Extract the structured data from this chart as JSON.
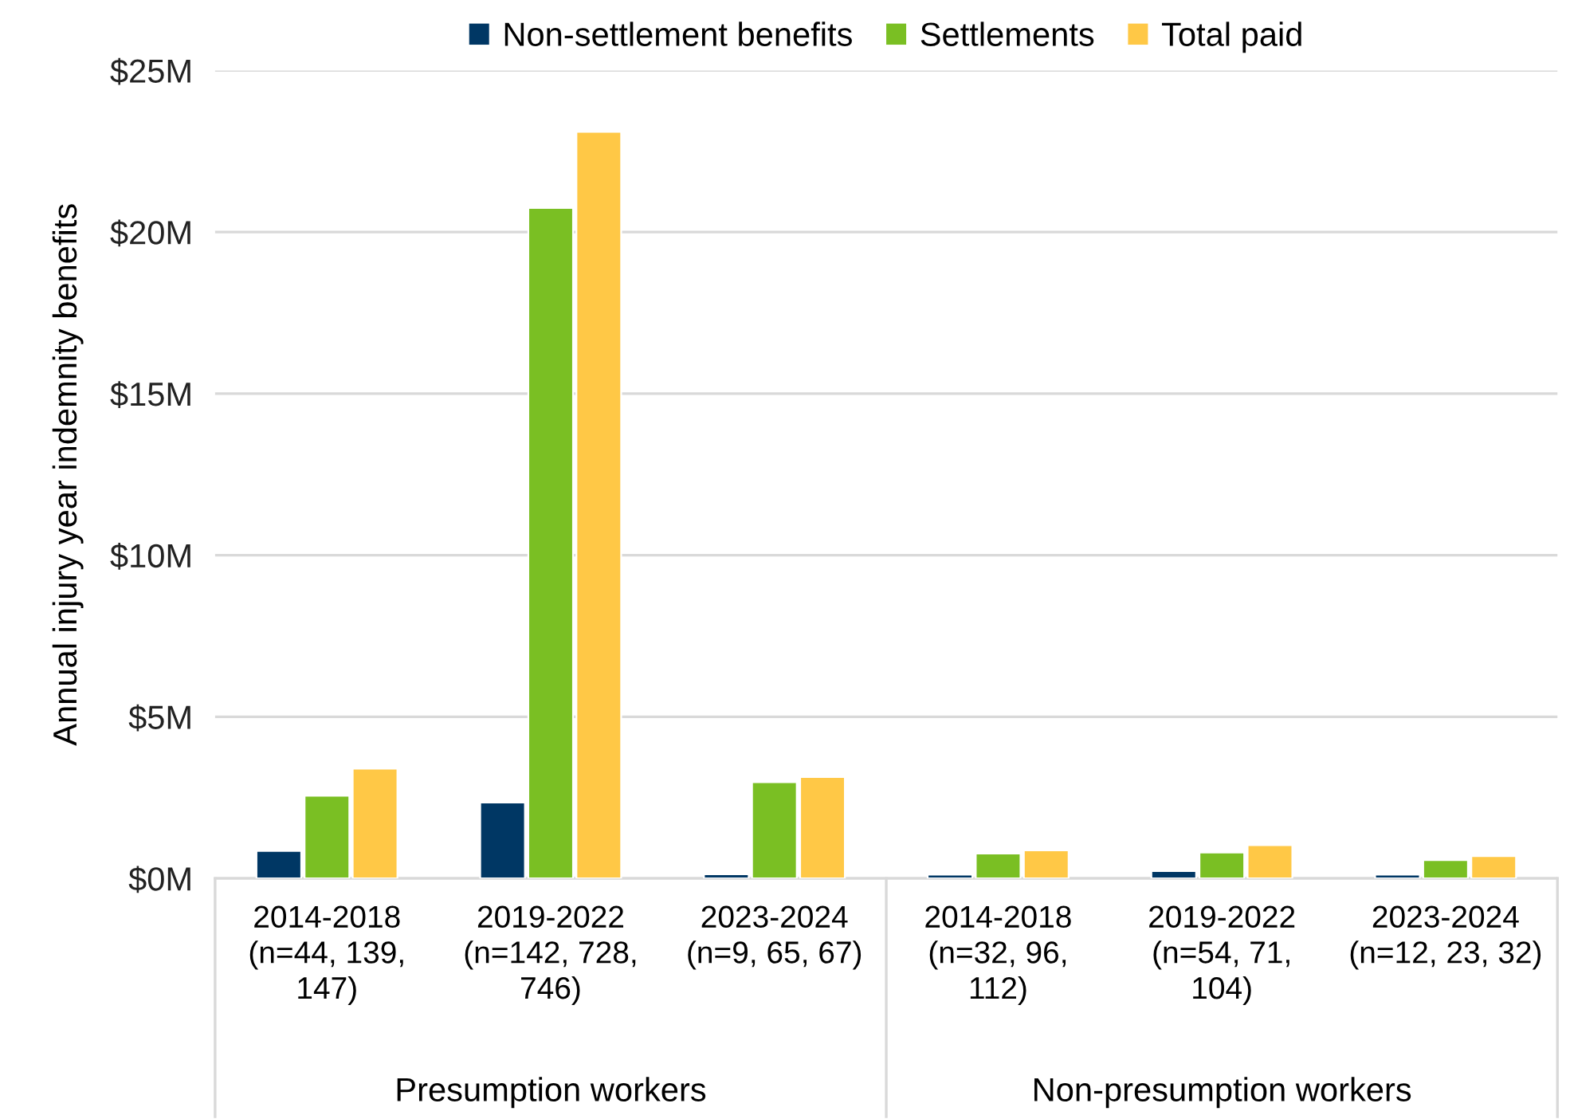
{
  "chart_data": {
    "type": "bar",
    "ylabel": "Annual injury year indemnity benefits",
    "categories": [
      "2014-2018\n(n=44, 139,\n147)",
      "2019-2022\n(n=142, 728,\n746)",
      "2023-2024\n(n=9, 65, 67)",
      "2014-2018\n(n=32, 96,\n112)",
      "2019-2022\n(n=54, 71,\n104)",
      "2023-2024\n(n=12, 23, 32)"
    ],
    "series": [
      {
        "name": "Non-settlement benefits",
        "color": "#003764",
        "values": [
          0.85,
          2.35,
          0.13,
          0.12,
          0.23,
          0.12
        ]
      },
      {
        "name": "Settlements",
        "color": "#7abf23",
        "values": [
          2.56,
          20.75,
          2.98,
          0.77,
          0.8,
          0.57
        ]
      },
      {
        "name": "Total paid",
        "color": "#ffc846",
        "values": [
          3.4,
          23.1,
          3.14,
          0.87,
          1.03,
          0.69
        ]
      }
    ],
    "ylim": [
      0,
      25
    ],
    "yticks": [
      {
        "value": 0,
        "label": "$0M"
      },
      {
        "value": 5,
        "label": "$5M"
      },
      {
        "value": 10,
        "label": "$10M"
      },
      {
        "value": 15,
        "label": "$15M"
      },
      {
        "value": 20,
        "label": "$20M"
      },
      {
        "value": 25,
        "label": "$25M"
      }
    ],
    "annotations": [
      "Presumption workers",
      "Non-presumption workers"
    ],
    "grid": "y",
    "legend": "top"
  }
}
